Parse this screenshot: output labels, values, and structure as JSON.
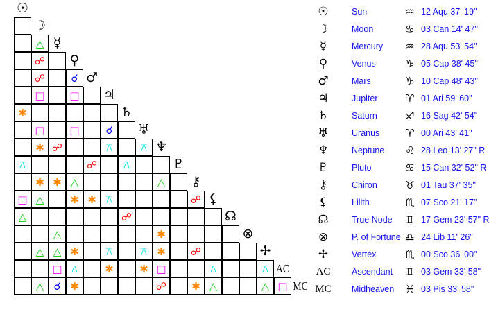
{
  "planets": [
    {
      "name": "Sun",
      "glyph": "☉",
      "icon": "sun-icon",
      "sign_glyph": "♒",
      "sign_icon": "aquarius-icon",
      "position": "12 Aqu 37' 19\""
    },
    {
      "name": "Moon",
      "glyph": "☽",
      "icon": "moon-icon",
      "sign_glyph": "♋",
      "sign_icon": "cancer-icon",
      "position": "03 Can 14' 47\""
    },
    {
      "name": "Mercury",
      "glyph": "☿",
      "icon": "mercury-icon",
      "sign_glyph": "♒",
      "sign_icon": "aquarius-icon",
      "position": "28 Aqu 53' 54\""
    },
    {
      "name": "Venus",
      "glyph": "♀",
      "icon": "venus-icon",
      "sign_glyph": "♑",
      "sign_icon": "capricorn-icon",
      "position": "05 Cap 38' 45\""
    },
    {
      "name": "Mars",
      "glyph": "♂",
      "icon": "mars-icon",
      "sign_glyph": "♑",
      "sign_icon": "capricorn-icon",
      "position": "10 Cap 48' 43\""
    },
    {
      "name": "Jupiter",
      "glyph": "♃",
      "icon": "jupiter-icon",
      "sign_glyph": "♈",
      "sign_icon": "aries-icon",
      "position": "01 Ari 59' 60\""
    },
    {
      "name": "Saturn",
      "glyph": "♄",
      "icon": "saturn-icon",
      "sign_glyph": "♐",
      "sign_icon": "sagittarius-icon",
      "position": "16 Sag 42' 54\""
    },
    {
      "name": "Uranus",
      "glyph": "♅",
      "icon": "uranus-icon",
      "sign_glyph": "♈",
      "sign_icon": "aries-icon",
      "position": "00 Ari 43' 41\""
    },
    {
      "name": "Neptune",
      "glyph": "♆",
      "icon": "neptune-icon",
      "sign_glyph": "♌",
      "sign_icon": "leo-icon",
      "position": "28 Leo 13' 27\" R"
    },
    {
      "name": "Pluto",
      "glyph": "♇",
      "icon": "pluto-icon",
      "sign_glyph": "♋",
      "sign_icon": "cancer-icon",
      "position": "15 Can 32' 52\" R"
    },
    {
      "name": "Chiron",
      "glyph": "⚷",
      "icon": "chiron-icon",
      "sign_glyph": "♉",
      "sign_icon": "taurus-icon",
      "position": "01 Tau 37' 35\""
    },
    {
      "name": "Lilith",
      "glyph": "⚸",
      "icon": "lilith-icon",
      "sign_glyph": "♏",
      "sign_icon": "scorpio-icon",
      "position": "07 Sco 21' 17\""
    },
    {
      "name": "True Node",
      "glyph": "☊",
      "icon": "true-node-icon",
      "sign_glyph": "♊",
      "sign_icon": "gemini-icon",
      "position": "17 Gem 23' 57\" R"
    },
    {
      "name": "P. of Fortune",
      "glyph": "⊗",
      "icon": "part-of-fortune-icon",
      "sign_glyph": "♎",
      "sign_icon": "libra-icon",
      "position": "24 Lib 11' 26\""
    },
    {
      "name": "Vertex",
      "glyph": "✢",
      "icon": "vertex-icon",
      "sign_glyph": "♏",
      "sign_icon": "scorpio-icon",
      "position": "00 Sco 36' 00\""
    },
    {
      "name": "Ascendant",
      "glyph": "AC",
      "icon": "ascendant-icon",
      "sign_glyph": "♊",
      "sign_icon": "gemini-icon",
      "position": "03 Gem 33' 58\""
    },
    {
      "name": "Midheaven",
      "glyph": "MC",
      "icon": "midheaven-icon",
      "sign_glyph": "♓",
      "sign_icon": "pisces-icon",
      "position": "03 Pis 33' 58\""
    }
  ],
  "aspect_types": {
    "conjunction": {
      "glyph": "☌",
      "color": "#0000ff"
    },
    "opposition": {
      "glyph": "☍",
      "color": "#ff0000"
    },
    "trine": {
      "glyph": "△",
      "color": "#00cc00"
    },
    "square": {
      "glyph": "□",
      "color": "#ff00ff"
    },
    "sextile": {
      "glyph": "✱",
      "color": "#ff8800"
    },
    "quincunx": {
      "glyph": "⚻",
      "color": "#00e5e5"
    }
  },
  "aspects": [
    [
      "Mercury",
      "Moon",
      "trine"
    ],
    [
      "Venus",
      "Moon",
      "opposition"
    ],
    [
      "Mars",
      "Moon",
      "opposition"
    ],
    [
      "Mars",
      "Venus",
      "conjunction"
    ],
    [
      "Jupiter",
      "Moon",
      "square"
    ],
    [
      "Jupiter",
      "Venus",
      "square"
    ],
    [
      "Saturn",
      "Sun",
      "sextile"
    ],
    [
      "Uranus",
      "Moon",
      "square"
    ],
    [
      "Uranus",
      "Venus",
      "square"
    ],
    [
      "Uranus",
      "Jupiter",
      "conjunction"
    ],
    [
      "Neptune",
      "Moon",
      "sextile"
    ],
    [
      "Neptune",
      "Mercury",
      "opposition"
    ],
    [
      "Neptune",
      "Jupiter",
      "quincunx"
    ],
    [
      "Neptune",
      "Uranus",
      "quincunx"
    ],
    [
      "Pluto",
      "Sun",
      "quincunx"
    ],
    [
      "Pluto",
      "Mars",
      "opposition"
    ],
    [
      "Pluto",
      "Saturn",
      "quincunx"
    ],
    [
      "Chiron",
      "Moon",
      "sextile"
    ],
    [
      "Chiron",
      "Mercury",
      "sextile"
    ],
    [
      "Chiron",
      "Venus",
      "trine"
    ],
    [
      "Chiron",
      "Neptune",
      "trine"
    ],
    [
      "Lilith",
      "Sun",
      "square"
    ],
    [
      "Lilith",
      "Moon",
      "trine"
    ],
    [
      "Lilith",
      "Venus",
      "sextile"
    ],
    [
      "Lilith",
      "Mars",
      "sextile"
    ],
    [
      "Lilith",
      "Jupiter",
      "quincunx"
    ],
    [
      "Lilith",
      "Chiron",
      "opposition"
    ],
    [
      "True Node",
      "Sun",
      "trine"
    ],
    [
      "True Node",
      "Saturn",
      "opposition"
    ],
    [
      "P. of Fortune",
      "Mercury",
      "trine"
    ],
    [
      "P. of Fortune",
      "Neptune",
      "sextile"
    ],
    [
      "Vertex",
      "Moon",
      "trine"
    ],
    [
      "Vertex",
      "Mercury",
      "trine"
    ],
    [
      "Vertex",
      "Venus",
      "sextile"
    ],
    [
      "Vertex",
      "Jupiter",
      "quincunx"
    ],
    [
      "Vertex",
      "Uranus",
      "quincunx"
    ],
    [
      "Vertex",
      "Neptune",
      "sextile"
    ],
    [
      "Vertex",
      "Chiron",
      "opposition"
    ],
    [
      "Ascendant",
      "Mercury",
      "square"
    ],
    [
      "Ascendant",
      "Venus",
      "quincunx"
    ],
    [
      "Ascendant",
      "Jupiter",
      "sextile"
    ],
    [
      "Ascendant",
      "Uranus",
      "sextile"
    ],
    [
      "Ascendant",
      "Neptune",
      "square"
    ],
    [
      "Ascendant",
      "Lilith",
      "quincunx"
    ],
    [
      "Ascendant",
      "Vertex",
      "quincunx"
    ],
    [
      "Midheaven",
      "Moon",
      "trine"
    ],
    [
      "Midheaven",
      "Mercury",
      "conjunction"
    ],
    [
      "Midheaven",
      "Venus",
      "sextile"
    ],
    [
      "Midheaven",
      "Neptune",
      "opposition"
    ],
    [
      "Midheaven",
      "Chiron",
      "sextile"
    ],
    [
      "Midheaven",
      "Lilith",
      "trine"
    ],
    [
      "Midheaven",
      "Vertex",
      "trine"
    ],
    [
      "Midheaven",
      "Ascendant",
      "square"
    ]
  ]
}
